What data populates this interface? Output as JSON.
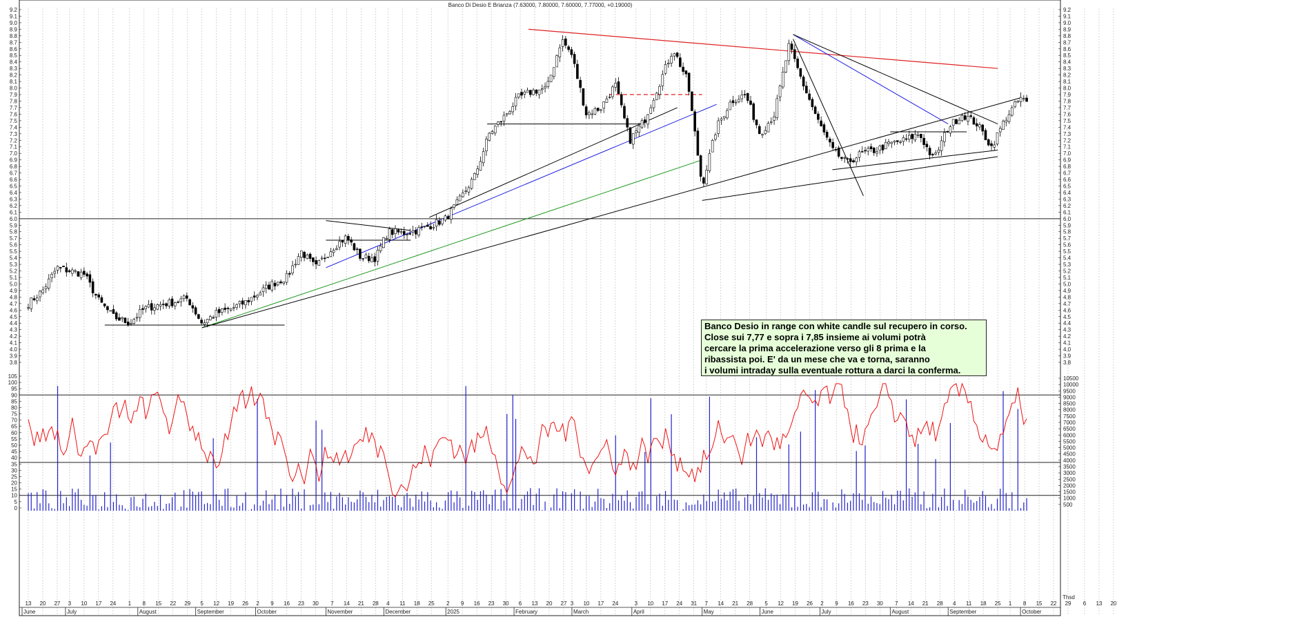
{
  "chart_data": [
    {
      "type": "candlestick",
      "title": "Banco Di Desio E Brianza (7.63000, 7.80000, 7.60000, 7.77000, +0.19000)",
      "ylim": [
        3.8,
        9.2
      ],
      "y_ticks": [
        "3.8",
        "3.9",
        "4.0",
        "4.1",
        "4.2",
        "4.3",
        "4.4",
        "4.5",
        "4.6",
        "4.7",
        "4.8",
        "4.9",
        "5.0",
        "5.1",
        "5.2",
        "5.3",
        "5.4",
        "5.5",
        "5.6",
        "5.7",
        "5.8",
        "5.9",
        "6.0",
        "6.1",
        "6.2",
        "6.3",
        "6.4",
        "6.5",
        "6.6",
        "6.7",
        "6.8",
        "6.9",
        "7.0",
        "7.1",
        "7.2",
        "7.3",
        "7.4",
        "7.5",
        "7.6",
        "7.7",
        "7.8",
        "7.9",
        "8.0",
        "8.1",
        "8.2",
        "8.3",
        "8.4",
        "8.5",
        "8.6",
        "8.7",
        "8.8",
        "8.9",
        "9.0",
        "9.1",
        "9.2"
      ],
      "grid": true,
      "x_day_ticks": [
        "13",
        "20",
        "27",
        "3",
        "10",
        "17",
        "24",
        "1",
        "8",
        "15",
        "22",
        "29",
        "5",
        "12",
        "19",
        "26",
        "2",
        "9",
        "16",
        "23",
        "30",
        "7",
        "14",
        "21",
        "28",
        "4",
        "11",
        "18",
        "25",
        "2",
        "9",
        "16",
        "23",
        "30",
        "6",
        "13",
        "20",
        "27",
        "3",
        "10",
        "17",
        "24",
        "3",
        "10",
        "17",
        "24",
        "31",
        "7",
        "14",
        "21",
        "28",
        "5",
        "12",
        "19",
        "26",
        "2",
        "9",
        "16",
        "23",
        "30",
        "7",
        "14",
        "21",
        "28",
        "4",
        "11",
        "18",
        "25",
        "1",
        "8",
        "15",
        "22",
        "29",
        "6",
        "13",
        "20"
      ],
      "x_month_labels": [
        "June",
        "July",
        "August",
        "September",
        "October",
        "November",
        "December",
        "2025",
        "February",
        "March",
        "April",
        "May",
        "June",
        "July",
        "August",
        "September",
        "October"
      ],
      "close_path": [
        [
          "2024-06-13",
          4.7
        ],
        [
          "2024-06-20",
          4.9
        ],
        [
          "2024-06-27",
          5.25
        ],
        [
          "2024-07-03",
          5.2
        ],
        [
          "2024-07-10",
          5.15
        ],
        [
          "2024-07-17",
          4.75
        ],
        [
          "2024-07-24",
          4.5
        ],
        [
          "2024-08-01",
          4.4
        ],
        [
          "2024-08-08",
          4.62
        ],
        [
          "2024-08-15",
          4.68
        ],
        [
          "2024-08-22",
          4.72
        ],
        [
          "2024-08-29",
          4.78
        ],
        [
          "2024-09-05",
          4.4
        ],
        [
          "2024-09-12",
          4.55
        ],
        [
          "2024-09-19",
          4.62
        ],
        [
          "2024-09-26",
          4.72
        ],
        [
          "2024-10-02",
          4.85
        ],
        [
          "2024-10-09",
          5.0
        ],
        [
          "2024-10-16",
          5.1
        ],
        [
          "2024-10-23",
          5.5
        ],
        [
          "2024-10-30",
          5.25
        ],
        [
          "2024-11-07",
          5.55
        ],
        [
          "2024-11-14",
          5.72
        ],
        [
          "2024-11-21",
          5.4
        ],
        [
          "2024-11-28",
          5.4
        ],
        [
          "2024-12-04",
          5.8
        ],
        [
          "2024-12-11",
          5.78
        ],
        [
          "2024-12-18",
          5.82
        ],
        [
          "2024-12-25",
          5.9
        ],
        [
          "2025-01-01",
          6.0
        ],
        [
          "2025-01-08",
          6.3
        ],
        [
          "2025-01-15",
          6.65
        ],
        [
          "2025-01-22",
          7.3
        ],
        [
          "2025-01-29",
          7.55
        ],
        [
          "2025-02-05",
          7.85
        ],
        [
          "2025-02-12",
          7.95
        ],
        [
          "2025-02-19",
          8.0
        ],
        [
          "2025-02-26",
          8.75
        ],
        [
          "2025-03-03",
          8.5
        ],
        [
          "2025-03-10",
          7.6
        ],
        [
          "2025-03-17",
          7.7
        ],
        [
          "2025-03-24",
          8.05
        ],
        [
          "2025-03-31",
          7.2
        ],
        [
          "2025-04-07",
          7.5
        ],
        [
          "2025-04-14",
          8.05
        ],
        [
          "2025-04-21",
          8.6
        ],
        [
          "2025-04-28",
          8.1
        ],
        [
          "2025-05-05",
          6.5
        ],
        [
          "2025-05-12",
          7.4
        ],
        [
          "2025-05-19",
          7.8
        ],
        [
          "2025-05-26",
          7.9
        ],
        [
          "2025-06-02",
          7.3
        ],
        [
          "2025-06-09",
          7.6
        ],
        [
          "2025-06-16",
          8.65
        ],
        [
          "2025-06-23",
          8.05
        ],
        [
          "2025-06-30",
          7.5
        ],
        [
          "2025-07-07",
          7.05
        ],
        [
          "2025-07-14",
          6.85
        ],
        [
          "2025-07-21",
          7.0
        ],
        [
          "2025-07-28",
          7.05
        ],
        [
          "2025-08-04",
          7.15
        ],
        [
          "2025-08-11",
          7.2
        ],
        [
          "2025-08-18",
          7.3
        ],
        [
          "2025-08-25",
          6.9
        ],
        [
          "2025-09-01",
          7.4
        ],
        [
          "2025-09-08",
          7.6
        ],
        [
          "2025-09-15",
          7.45
        ],
        [
          "2025-09-22",
          7.1
        ],
        [
          "2025-09-29",
          7.55
        ],
        [
          "2025-10-06",
          7.85
        ],
        [
          "2025-10-09",
          7.77
        ]
      ],
      "horizontal_lines": [
        6.0
      ],
      "annotation": {
        "lines": [
          "Banco Desio in range con white candle sul recupero in corso.",
          "Close sui 7,77 e sopra i 7,85 insieme ai volumi potrà",
          "cercare la prima accelerazione verso gli 8 prima e la",
          "ribassista poi. E' da un mese che va e torna, saranno",
          "i volumi intraday sulla eventuale rottura a darci la conferma."
        ]
      }
    },
    {
      "type": "line",
      "name": "oscillator",
      "ylim": [
        -5,
        105
      ],
      "y_ticks": [
        "0",
        "5",
        "10",
        "15",
        "20",
        "25",
        "30",
        "35",
        "40",
        "45",
        "50",
        "55",
        "60",
        "65",
        "70",
        "75",
        "80",
        "85",
        "90",
        "95",
        "100",
        "105"
      ],
      "horizontal_lines": [
        10,
        90
      ]
    },
    {
      "type": "bar",
      "name": "volume",
      "ylim": [
        0,
        10500
      ],
      "y_ticks": [
        "500",
        "1000",
        "1500",
        "2000",
        "2500",
        "3000",
        "3500",
        "4000",
        "4500",
        "5000",
        "5500",
        "6000",
        "6500",
        "7000",
        "7500",
        "8000",
        "8500",
        "9000",
        "9500",
        "10000",
        "10500"
      ],
      "unit_label": "Thsd"
    }
  ],
  "colors": {
    "up_candle": "#ffffff",
    "down_candle": "#000000",
    "resistance_line": "#e02020",
    "blue_trend": "#1a1ae0",
    "green_trend": "#1e9a1e",
    "oscillator": "#ee1111",
    "volume": "#2222cc",
    "annotation_bg": "#e6ffd9"
  }
}
